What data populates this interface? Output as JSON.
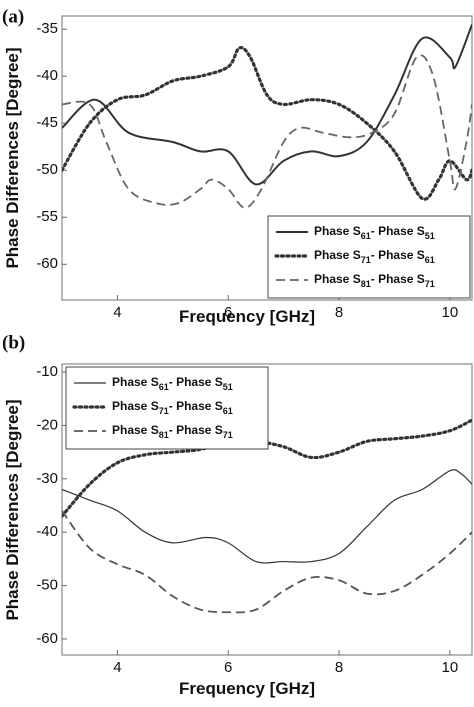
{
  "chart_data": [
    {
      "type": "line",
      "panel_label": "(a)",
      "xlabel": "Frequency [GHz]",
      "ylabel": "Phase Differences [Degree]",
      "xlim": [
        3,
        10.4
      ],
      "ylim": [
        -63.8,
        -33.6
      ],
      "xticks": [
        4,
        6,
        8,
        10
      ],
      "yticks": [
        -35,
        -40,
        -45,
        -50,
        -55,
        -60
      ],
      "legend": "lower right",
      "series": [
        {
          "name": "Phase S61- Phase S51",
          "color": "#333333",
          "dash": "solid",
          "x": [
            3,
            3.6,
            4.2,
            5,
            5.5,
            6,
            6.5,
            7,
            7.5,
            8,
            8.5,
            9,
            9.5,
            10,
            10.1,
            10.4
          ],
          "values": [
            -45.5,
            -42.5,
            -46,
            -47,
            -48,
            -48,
            -51.5,
            -49,
            -48,
            -48.5,
            -47,
            -42,
            -36,
            -38,
            -39,
            -34.5
          ]
        },
        {
          "name": "Phase S71- Phase S61",
          "color": "#333333",
          "dash": "dotted",
          "x": [
            3,
            3.5,
            4,
            4.5,
            5,
            5.5,
            6,
            6.2,
            6.4,
            6.7,
            7,
            7.5,
            8,
            8.5,
            9,
            9.5,
            9.8,
            10,
            10.3,
            10.4
          ],
          "values": [
            -50,
            -45,
            -42.5,
            -42,
            -40.5,
            -40,
            -39,
            -37,
            -38,
            -42,
            -43,
            -42.5,
            -43,
            -45,
            -48,
            -53,
            -51,
            -49,
            -51,
            -50
          ]
        },
        {
          "name": "Phase S81- Phase S71",
          "color": "#666666",
          "dash": "dashed",
          "x": [
            3,
            3.5,
            3.8,
            4.2,
            4.7,
            5.1,
            5.5,
            5.7,
            6,
            6.3,
            6.6,
            7,
            7.3,
            7.7,
            8.2,
            8.6,
            9,
            9.4,
            9.7,
            10,
            10.1,
            10.3,
            10.4
          ],
          "values": [
            -43,
            -43,
            -47,
            -52,
            -53.5,
            -53.5,
            -52,
            -51,
            -52,
            -54,
            -52,
            -47,
            -45.5,
            -46,
            -46.5,
            -46,
            -44,
            -38,
            -40,
            -49,
            -52,
            -47,
            -43
          ]
        }
      ]
    },
    {
      "type": "line",
      "panel_label": "(b)",
      "xlabel": "Frequency [GHz]",
      "ylabel": "Phase Differences [Degree]",
      "xlim": [
        3,
        10.4
      ],
      "ylim": [
        -63,
        -8.5
      ],
      "xticks": [
        4,
        6,
        8,
        10
      ],
      "yticks": [
        -10,
        -20,
        -30,
        -40,
        -50,
        -60
      ],
      "legend": "upper left",
      "series": [
        {
          "name": "Phase S61- Phase S51",
          "color": "#333333",
          "dash": "thin",
          "x": [
            3,
            3.5,
            4,
            4.5,
            5,
            5.6,
            6,
            6.5,
            7,
            7.5,
            8,
            8.5,
            9,
            9.5,
            10,
            10.2,
            10.4
          ],
          "values": [
            -32,
            -34,
            -36,
            -40,
            -42,
            -41,
            -42,
            -45.5,
            -45.5,
            -45.5,
            -44,
            -39,
            -34,
            -32,
            -28.5,
            -29,
            -31
          ]
        },
        {
          "name": "Phase S71- Phase S61",
          "color": "#333333",
          "dash": "dotted",
          "x": [
            3,
            3.5,
            4,
            4.5,
            5,
            5.5,
            6,
            6.5,
            7,
            7.5,
            8,
            8.5,
            9,
            9.5,
            10,
            10.4
          ],
          "values": [
            -37,
            -31,
            -27,
            -25.5,
            -25,
            -24.5,
            -23,
            -23,
            -24,
            -26,
            -25,
            -23,
            -22.5,
            -22,
            -21,
            -19
          ]
        },
        {
          "name": "Phase S81- Phase S71",
          "color": "#555555",
          "dash": "dashed",
          "x": [
            3,
            3.5,
            4,
            4.5,
            5,
            5.5,
            6,
            6.5,
            7,
            7.5,
            8,
            8.5,
            9,
            9.5,
            10,
            10.4
          ],
          "values": [
            -36,
            -43,
            -46,
            -48,
            -52,
            -54.5,
            -55,
            -54.5,
            -51,
            -48.5,
            -49,
            -51.5,
            -51,
            -48,
            -44,
            -40
          ]
        }
      ]
    }
  ]
}
